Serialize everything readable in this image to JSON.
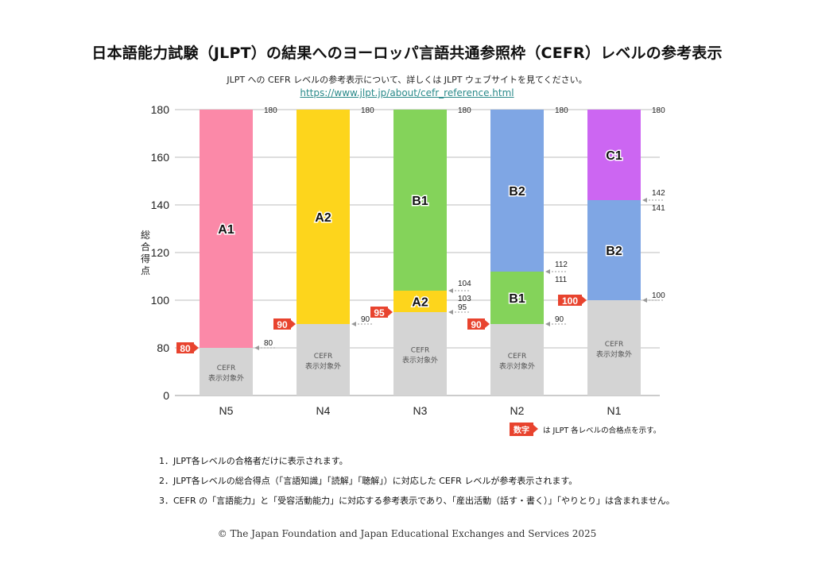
{
  "header": {
    "title": "日本語能力試験（JLPT）の結果へのヨーロッパ言語共通参照枠（CEFR）レベルの参考表示",
    "subtitle": "JLPT への CEFR レベルの参考表示について、詳しくは JLPT ウェブサイトを見てください。",
    "link": "https://www.jlpt.jp/about/cefr_reference.html"
  },
  "legend": {
    "tag": "数字",
    "text": "は JLPT 各レベルの合格点を示す。"
  },
  "notes": [
    "1．JLPT各レベルの合格者だけに表示されます。",
    "2．JLPT各レベルの総合得点（「言語知識」「読解」「聴解」）に対応した CEFR レベルが参考表示されます。",
    "3．CEFR の「言語能力」と「受容活動能力」に対応する参考表示であり、「産出活動（話す・書く）」「やりとり」は含まれません。"
  ],
  "copyright": "© The Japan Foundation and Japan Educational Exchanges and Services 2025",
  "colors": {
    "A1": "#fb89a8",
    "A2": "#fdd51c",
    "B1": "#84d35a",
    "B2": "#7fa6e4",
    "C1": "#cc66f2",
    "excluded": "#d4d4d4",
    "pass_tag": "#e8432e",
    "grid": "#bdbdbd"
  },
  "chart_data": {
    "type": "bar",
    "stacked": true,
    "title": "日本語能力試験（JLPT）の結果へのヨーロッパ言語共通参照枠（CEFR）レベルの参考表示",
    "xlabel": "",
    "ylabel": "総合得点",
    "categories": [
      "N5",
      "N4",
      "N3",
      "N2",
      "N1"
    ],
    "yticks": [
      0,
      80,
      100,
      120,
      140,
      160,
      180
    ],
    "ylim": [
      0,
      180
    ],
    "axis_break": "0–80 compressed",
    "grid": true,
    "excluded_label": [
      "CEFR",
      "表示対象外"
    ],
    "bars": [
      {
        "category": "N5",
        "pass_score": 80,
        "segments": [
          {
            "level": "excluded",
            "from": 0,
            "to": 80
          },
          {
            "level": "A1",
            "from": 80,
            "to": 180
          }
        ],
        "boundary_labels": [
          {
            "value": 180,
            "text": "180"
          },
          {
            "value": 80,
            "text": "80"
          }
        ]
      },
      {
        "category": "N4",
        "pass_score": 90,
        "segments": [
          {
            "level": "excluded",
            "from": 0,
            "to": 90
          },
          {
            "level": "A2",
            "from": 90,
            "to": 180
          }
        ],
        "boundary_labels": [
          {
            "value": 180,
            "text": "180"
          },
          {
            "value": 90,
            "text": "90"
          }
        ]
      },
      {
        "category": "N3",
        "pass_score": 95,
        "segments": [
          {
            "level": "excluded",
            "from": 0,
            "to": 95
          },
          {
            "level": "A2",
            "from": 95,
            "to": 103
          },
          {
            "level": "B1",
            "from": 104,
            "to": 180
          }
        ],
        "boundary_labels": [
          {
            "value": 180,
            "text": "180"
          },
          {
            "value": 104,
            "text": "104"
          },
          {
            "value": 103,
            "text": "103"
          },
          {
            "value": 95,
            "text": "95"
          }
        ]
      },
      {
        "category": "N2",
        "pass_score": 90,
        "segments": [
          {
            "level": "excluded",
            "from": 0,
            "to": 90
          },
          {
            "level": "B1",
            "from": 90,
            "to": 111
          },
          {
            "level": "B2",
            "from": 112,
            "to": 180
          }
        ],
        "boundary_labels": [
          {
            "value": 180,
            "text": "180"
          },
          {
            "value": 112,
            "text": "112"
          },
          {
            "value": 111,
            "text": "111"
          },
          {
            "value": 90,
            "text": "90"
          }
        ]
      },
      {
        "category": "N1",
        "pass_score": 100,
        "segments": [
          {
            "level": "excluded",
            "from": 0,
            "to": 100
          },
          {
            "level": "B2",
            "from": 100,
            "to": 141
          },
          {
            "level": "C1",
            "from": 142,
            "to": 180
          }
        ],
        "boundary_labels": [
          {
            "value": 180,
            "text": "180"
          },
          {
            "value": 142,
            "text": "142"
          },
          {
            "value": 141,
            "text": "141"
          },
          {
            "value": 100,
            "text": "100"
          }
        ]
      }
    ]
  }
}
